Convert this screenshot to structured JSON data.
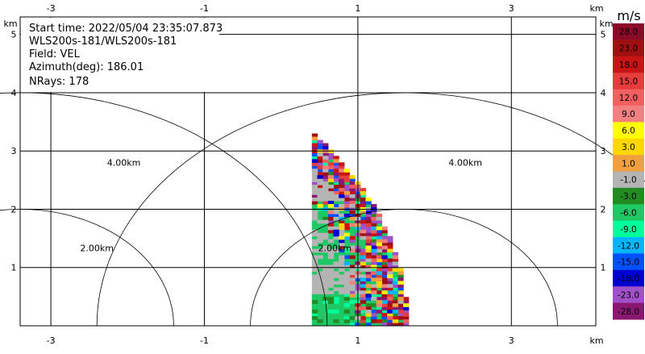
{
  "chart_data": {
    "type": "heatmap",
    "title": "",
    "info": {
      "start_time": "Start time: 2022/05/04 23:35:07.873",
      "instrument": "WLS200s-181/WLS200s-181",
      "field": "Field: VEL",
      "azimuth": "Azimuth(deg): 186.01",
      "nrays": "NRays: 178"
    },
    "unit_label": "km",
    "xlim": [
      -3.4,
      4.1
    ],
    "ylim": [
      0,
      5.3
    ],
    "x_ticks": [
      -3,
      -1,
      1,
      3
    ],
    "x_tick_labels": [
      "-3",
      "-1",
      "1",
      "3"
    ],
    "y_ticks": [
      1,
      2,
      3,
      4,
      5
    ],
    "y_tick_labels": [
      "1",
      "2",
      "3",
      "4",
      "5"
    ],
    "grid": true,
    "radar_origin_km": [
      -3.4,
      0
    ],
    "range_rings": [
      {
        "radius_km": 2,
        "label": "2.00km"
      },
      {
        "radius_km": 4,
        "label": "4.00km"
      }
    ],
    "data_extent": {
      "x_min_km": 0.4,
      "max_range_km": 5.05
    },
    "colorbar": {
      "title": "m/s",
      "labels": [
        "28.0",
        "23.0",
        "18.0",
        "15.0",
        "12.0",
        "9.0",
        "6.0",
        "3.0",
        "1.0",
        "-1.0",
        "-3.0",
        "-6.0",
        "-9.0",
        "-12.0",
        "-15.0",
        "-18.0",
        "-23.0",
        "-28.0"
      ],
      "colors": [
        "#8b0a2a",
        "#a01010",
        "#c81414",
        "#e63c3c",
        "#f26060",
        "#f28080",
        "#ffff00",
        "#ffd700",
        "#f0a040",
        "#b4b4b4",
        "#228b22",
        "#1ec864",
        "#00ff9a",
        "#00b4ff",
        "#0050ff",
        "#0000d0",
        "#a050c8",
        "#8b1870"
      ]
    },
    "velocity_fields": [
      {
        "name": "lowest_band",
        "y_range_km": [
          0,
          0.5
        ],
        "dominant_ms": -3.0
      },
      {
        "name": "low_mixed",
        "y_range_km": [
          0.5,
          1.0
        ],
        "dominant_ms": -1.0
      },
      {
        "name": "main_band",
        "y_range_km": [
          1.0,
          2.1
        ],
        "dominant_ms": -3.0
      },
      {
        "name": "embedded_fast",
        "y_range_km": [
          1.4,
          1.9
        ],
        "dominant_ms": -6.0
      },
      {
        "name": "mid_clear",
        "y_range_km": [
          2.1,
          2.8
        ],
        "dominant_ms": -1.0
      },
      {
        "name": "positive_band",
        "y_range_km": [
          2.6,
          3.0
        ],
        "dominant_ms": 3.0
      },
      {
        "name": "noise",
        "y_range_km": [
          3.0,
          5.05
        ],
        "dominant_ms": "mixed"
      }
    ]
  }
}
